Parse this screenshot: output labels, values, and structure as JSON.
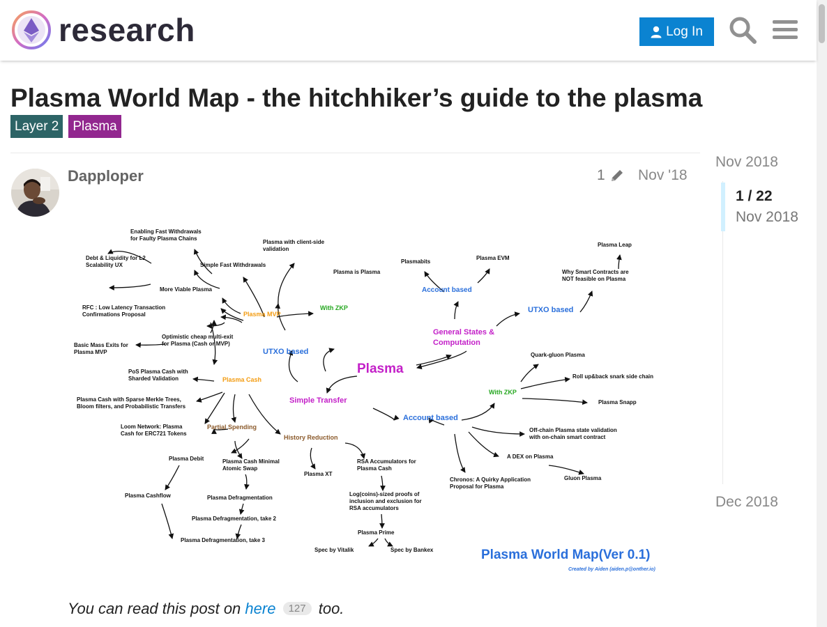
{
  "header": {
    "site_name": "research",
    "login_label": "Log In",
    "icons": [
      "logo-icon",
      "user-icon",
      "search-icon",
      "menu-icon"
    ]
  },
  "topic": {
    "title": "Plasma World Map - the hitchhiker’s guide to the plasma",
    "tags": [
      {
        "label": "Layer 2",
        "color": "#2d6466"
      },
      {
        "label": "Plasma",
        "color": "#92278f"
      }
    ]
  },
  "post": {
    "username": "Dapploper",
    "edit_count": "1",
    "date": "Nov '18",
    "text_before": "You can read this post on ",
    "link_text": "here",
    "link_clicks": "127",
    "text_after": " too."
  },
  "map": {
    "title": "Plasma World Map(Ver 0.1)",
    "credit": "Created by Aiden (aiden.p@onther.io)",
    "center": "Plasma",
    "nodes": [
      "Enabling Fast Withdrawals",
      "for Faulty Plasma Chains",
      "Debt & Liquidity for L2",
      "Scalability UX",
      "Simple Fast Withdrawals",
      "Plasma with client-side",
      "validation",
      "More Viable Plasma",
      "RFC : Low Latency Transaction",
      "Confirmations Proposal",
      "Plasma MVP",
      "With ZKP",
      "Plasma is Plasma",
      "Plasmabits",
      "Plasma EVM",
      "Account based",
      "Plasma Leap",
      "Why Smart Contracts are",
      "NOT feasible on Plasma",
      "UTXO based",
      "General States &",
      "Computation",
      "Optimistic cheap multi-exit",
      "for Plasma (Cash or MVP)",
      "Basic Mass Exits for",
      "Plasma MVP",
      "UTXO based",
      "Quark-gluon Plasma",
      "PoS Plasma Cash with",
      "Sharded Validation",
      "Plasma Cash",
      "Roll up&back snark side chain",
      "Plasma Cash with Sparse Merkle Trees,",
      "Bloom filters, and Probabilistic Transfers",
      "Simple Transfer",
      "With ZKP",
      "Plasma Snapp",
      "Loom Network: Plasma",
      "Cash for ERC721 Tokens",
      "Partial Spending",
      "Account based",
      "History Reduction",
      "Off-chain Plasma state validation",
      "with on-chain smart contract",
      "Plasma Debit",
      "Plasma Cash Minimal",
      "Atomic Swap",
      "RSA Accumulators for",
      "Plasma Cash",
      "A DEX on Plasma",
      "Plasma XT",
      "Gluon Plasma",
      "Chronos: A Quirky Application",
      "Proposal for Plasma",
      "Plasma Cashflow",
      "Plasma Defragmentation",
      "Log(coins)-sized proofs of",
      "inclusion and exclusion for",
      "RSA accumulators",
      "Plasma Defragmentation, take 2",
      "Plasma Prime",
      "Plasma Defragmentation, take 3",
      "Spec by Vitalik",
      "Spec by Bankex"
    ]
  },
  "timeline": {
    "start": "Nov 2018",
    "position": "1 / 22",
    "current_date": "Nov 2018",
    "end": "Dec 2018",
    "progress": 0.045
  },
  "colors": {
    "accent": "#0b83d1",
    "header_text": "#2d2a38",
    "map_orange": "#f39c12",
    "map_blue": "#2a6fdb",
    "map_magenta": "#c320c8",
    "map_green": "#27a822",
    "map_brown": "#8b5a2b"
  }
}
